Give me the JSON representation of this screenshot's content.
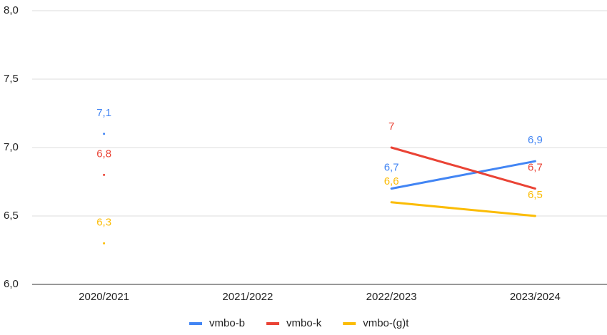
{
  "chart_data": {
    "type": "line",
    "categories": [
      "2020/2021",
      "2021/2022",
      "2022/2023",
      "2023/2024"
    ],
    "series": [
      {
        "name": "vmbo-b",
        "color": "#4285f4",
        "values": [
          7.1,
          null,
          6.7,
          6.9
        ],
        "value_labels": [
          "7,1",
          null,
          "6,7",
          "6,9"
        ]
      },
      {
        "name": "vmbo-k",
        "color": "#ea4335",
        "values": [
          6.8,
          null,
          7,
          6.7
        ],
        "value_labels": [
          "6,8",
          null,
          "7",
          "6,7"
        ]
      },
      {
        "name": "vmbo-(g)t",
        "color": "#fbbc04",
        "values": [
          6.3,
          null,
          6.6,
          6.5
        ],
        "value_labels": [
          "6,3",
          null,
          "6,6",
          "6,5"
        ]
      }
    ],
    "ylim": [
      6,
      8
    ],
    "yticks": [
      {
        "value": 6,
        "label": "6,0"
      },
      {
        "value": 6.5,
        "label": "6,5"
      },
      {
        "value": 7,
        "label": "7,0"
      },
      {
        "value": 7.5,
        "label": "7,5"
      },
      {
        "value": 8,
        "label": "8,0"
      }
    ],
    "grid": true,
    "legend": "bottom"
  }
}
